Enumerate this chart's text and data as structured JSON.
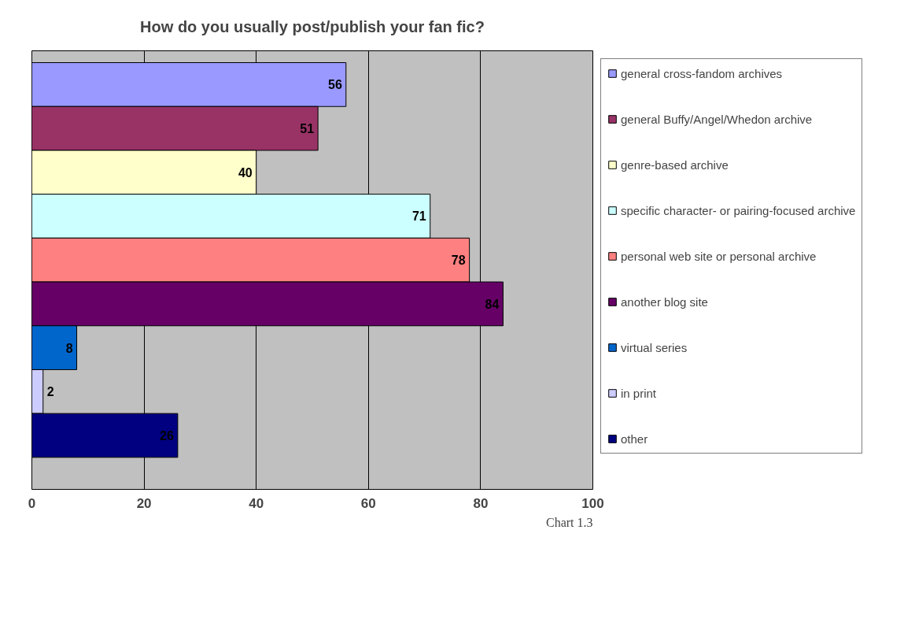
{
  "chart_data": {
    "type": "bar",
    "orientation": "horizontal",
    "title": "How do you usually post/publish your fan fic?",
    "categories": [
      null
    ],
    "series": [
      {
        "name": "general cross-fandom archives",
        "color": "#9999ff",
        "values": [
          56
        ]
      },
      {
        "name": "general Buffy/Angel/Whedon archive",
        "color": "#993366",
        "values": [
          51
        ]
      },
      {
        "name": "genre-based archive",
        "color": "#ffffcc",
        "values": [
          40
        ]
      },
      {
        "name": "specific character- or pairing-focused archive",
        "color": "#ccffff",
        "values": [
          71
        ]
      },
      {
        "name": "personal web site or personal archive",
        "color": "#ff8080",
        "values": [
          78
        ]
      },
      {
        "name": "another blog site",
        "color": "#660066",
        "values": [
          84
        ]
      },
      {
        "name": "virtual series",
        "color": "#0066cc",
        "values": [
          8
        ]
      },
      {
        "name": "in print",
        "color": "#ccccff",
        "values": [
          2
        ]
      },
      {
        "name": "other",
        "color": "#000080",
        "values": [
          26
        ]
      }
    ],
    "xlim": [
      0,
      100
    ],
    "xticks": [
      0,
      20,
      40,
      60,
      80,
      100
    ],
    "grid": "x",
    "legend": "right",
    "data_labels": true,
    "annotations": [
      "Chart 1.3"
    ]
  }
}
